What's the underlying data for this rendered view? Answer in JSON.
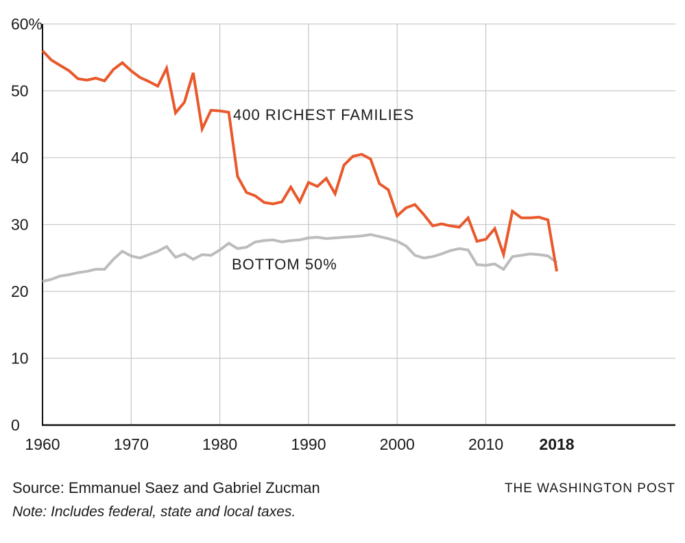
{
  "chart_data": {
    "type": "line",
    "title": "",
    "xlabel": "",
    "ylabel": "",
    "xlim": [
      1960,
      2018
    ],
    "ylim": [
      0,
      60
    ],
    "grid": true,
    "legend_position": "inline-annotations",
    "x_ticks": [
      1960,
      1970,
      1980,
      1990,
      2000,
      2010,
      2018
    ],
    "x_tick_labels": [
      "1960",
      "1970",
      "1980",
      "1990",
      "2000",
      "2010",
      "2018"
    ],
    "y_ticks": [
      0,
      10,
      20,
      30,
      40,
      50,
      60
    ],
    "y_tick_labels": [
      "0",
      "10",
      "20",
      "30",
      "40",
      "50",
      "60%"
    ],
    "x": [
      1960,
      1961,
      1962,
      1963,
      1964,
      1965,
      1966,
      1967,
      1968,
      1969,
      1970,
      1971,
      1972,
      1973,
      1974,
      1975,
      1976,
      1977,
      1978,
      1979,
      1980,
      1981,
      1982,
      1983,
      1984,
      1985,
      1986,
      1987,
      1988,
      1989,
      1990,
      1991,
      1992,
      1993,
      1994,
      1995,
      1996,
      1997,
      1998,
      1999,
      2000,
      2001,
      2002,
      2003,
      2004,
      2005,
      2006,
      2007,
      2008,
      2009,
      2010,
      2011,
      2012,
      2013,
      2014,
      2015,
      2016,
      2017,
      2018
    ],
    "series": [
      {
        "name": "400 RICHEST FAMILIES",
        "color": "#e8592b",
        "values": [
          56.0,
          54.6,
          53.8,
          53.0,
          51.8,
          51.6,
          51.9,
          51.5,
          53.2,
          54.2,
          53.0,
          52.0,
          51.4,
          50.7,
          53.4,
          46.7,
          48.3,
          52.7,
          44.3,
          47.1,
          47.0,
          46.8,
          37.2,
          34.8,
          34.3,
          33.3,
          33.1,
          33.4,
          35.6,
          33.4,
          36.3,
          35.7,
          36.9,
          34.6,
          38.9,
          40.2,
          40.5,
          39.8,
          36.1,
          35.2,
          31.3,
          32.5,
          33.0,
          31.5,
          29.8,
          30.1,
          29.8,
          29.6,
          31.0,
          27.5,
          27.8,
          29.4,
          25.5,
          32.0,
          31.0,
          31.0,
          31.1,
          30.7,
          23.0
        ]
      },
      {
        "name": "BOTTOM 50%",
        "color": "#bcbcbc",
        "values": [
          21.5,
          21.8,
          22.3,
          22.5,
          22.8,
          23.0,
          23.3,
          23.3,
          24.8,
          26.0,
          25.3,
          25.0,
          25.5,
          26.0,
          26.7,
          25.1,
          25.6,
          24.8,
          25.5,
          25.4,
          26.2,
          27.2,
          26.4,
          26.6,
          27.4,
          27.6,
          27.7,
          27.4,
          27.6,
          27.7,
          28.0,
          28.1,
          27.9,
          28.0,
          28.1,
          28.2,
          28.3,
          28.5,
          28.2,
          27.9,
          27.5,
          26.8,
          25.4,
          25.0,
          25.2,
          25.6,
          26.1,
          26.4,
          26.2,
          24.0,
          23.9,
          24.1,
          23.3,
          25.2,
          25.4,
          25.6,
          25.5,
          25.3,
          24.3
        ]
      }
    ]
  },
  "annotations": {
    "series1_label": "400 RICHEST FAMILIES",
    "series2_label": "BOTTOM 50%"
  },
  "footer": {
    "source": "Source: Emmanuel Saez and Gabriel Zucman",
    "credit": "THE WASHINGTON POST",
    "note": "Note: Includes federal, state and local taxes."
  },
  "colors": {
    "series1": "#e8592b",
    "series2": "#bcbcbc",
    "grid": "#c9c9c9",
    "axis": "#111111",
    "text": "#1a1a1a"
  }
}
